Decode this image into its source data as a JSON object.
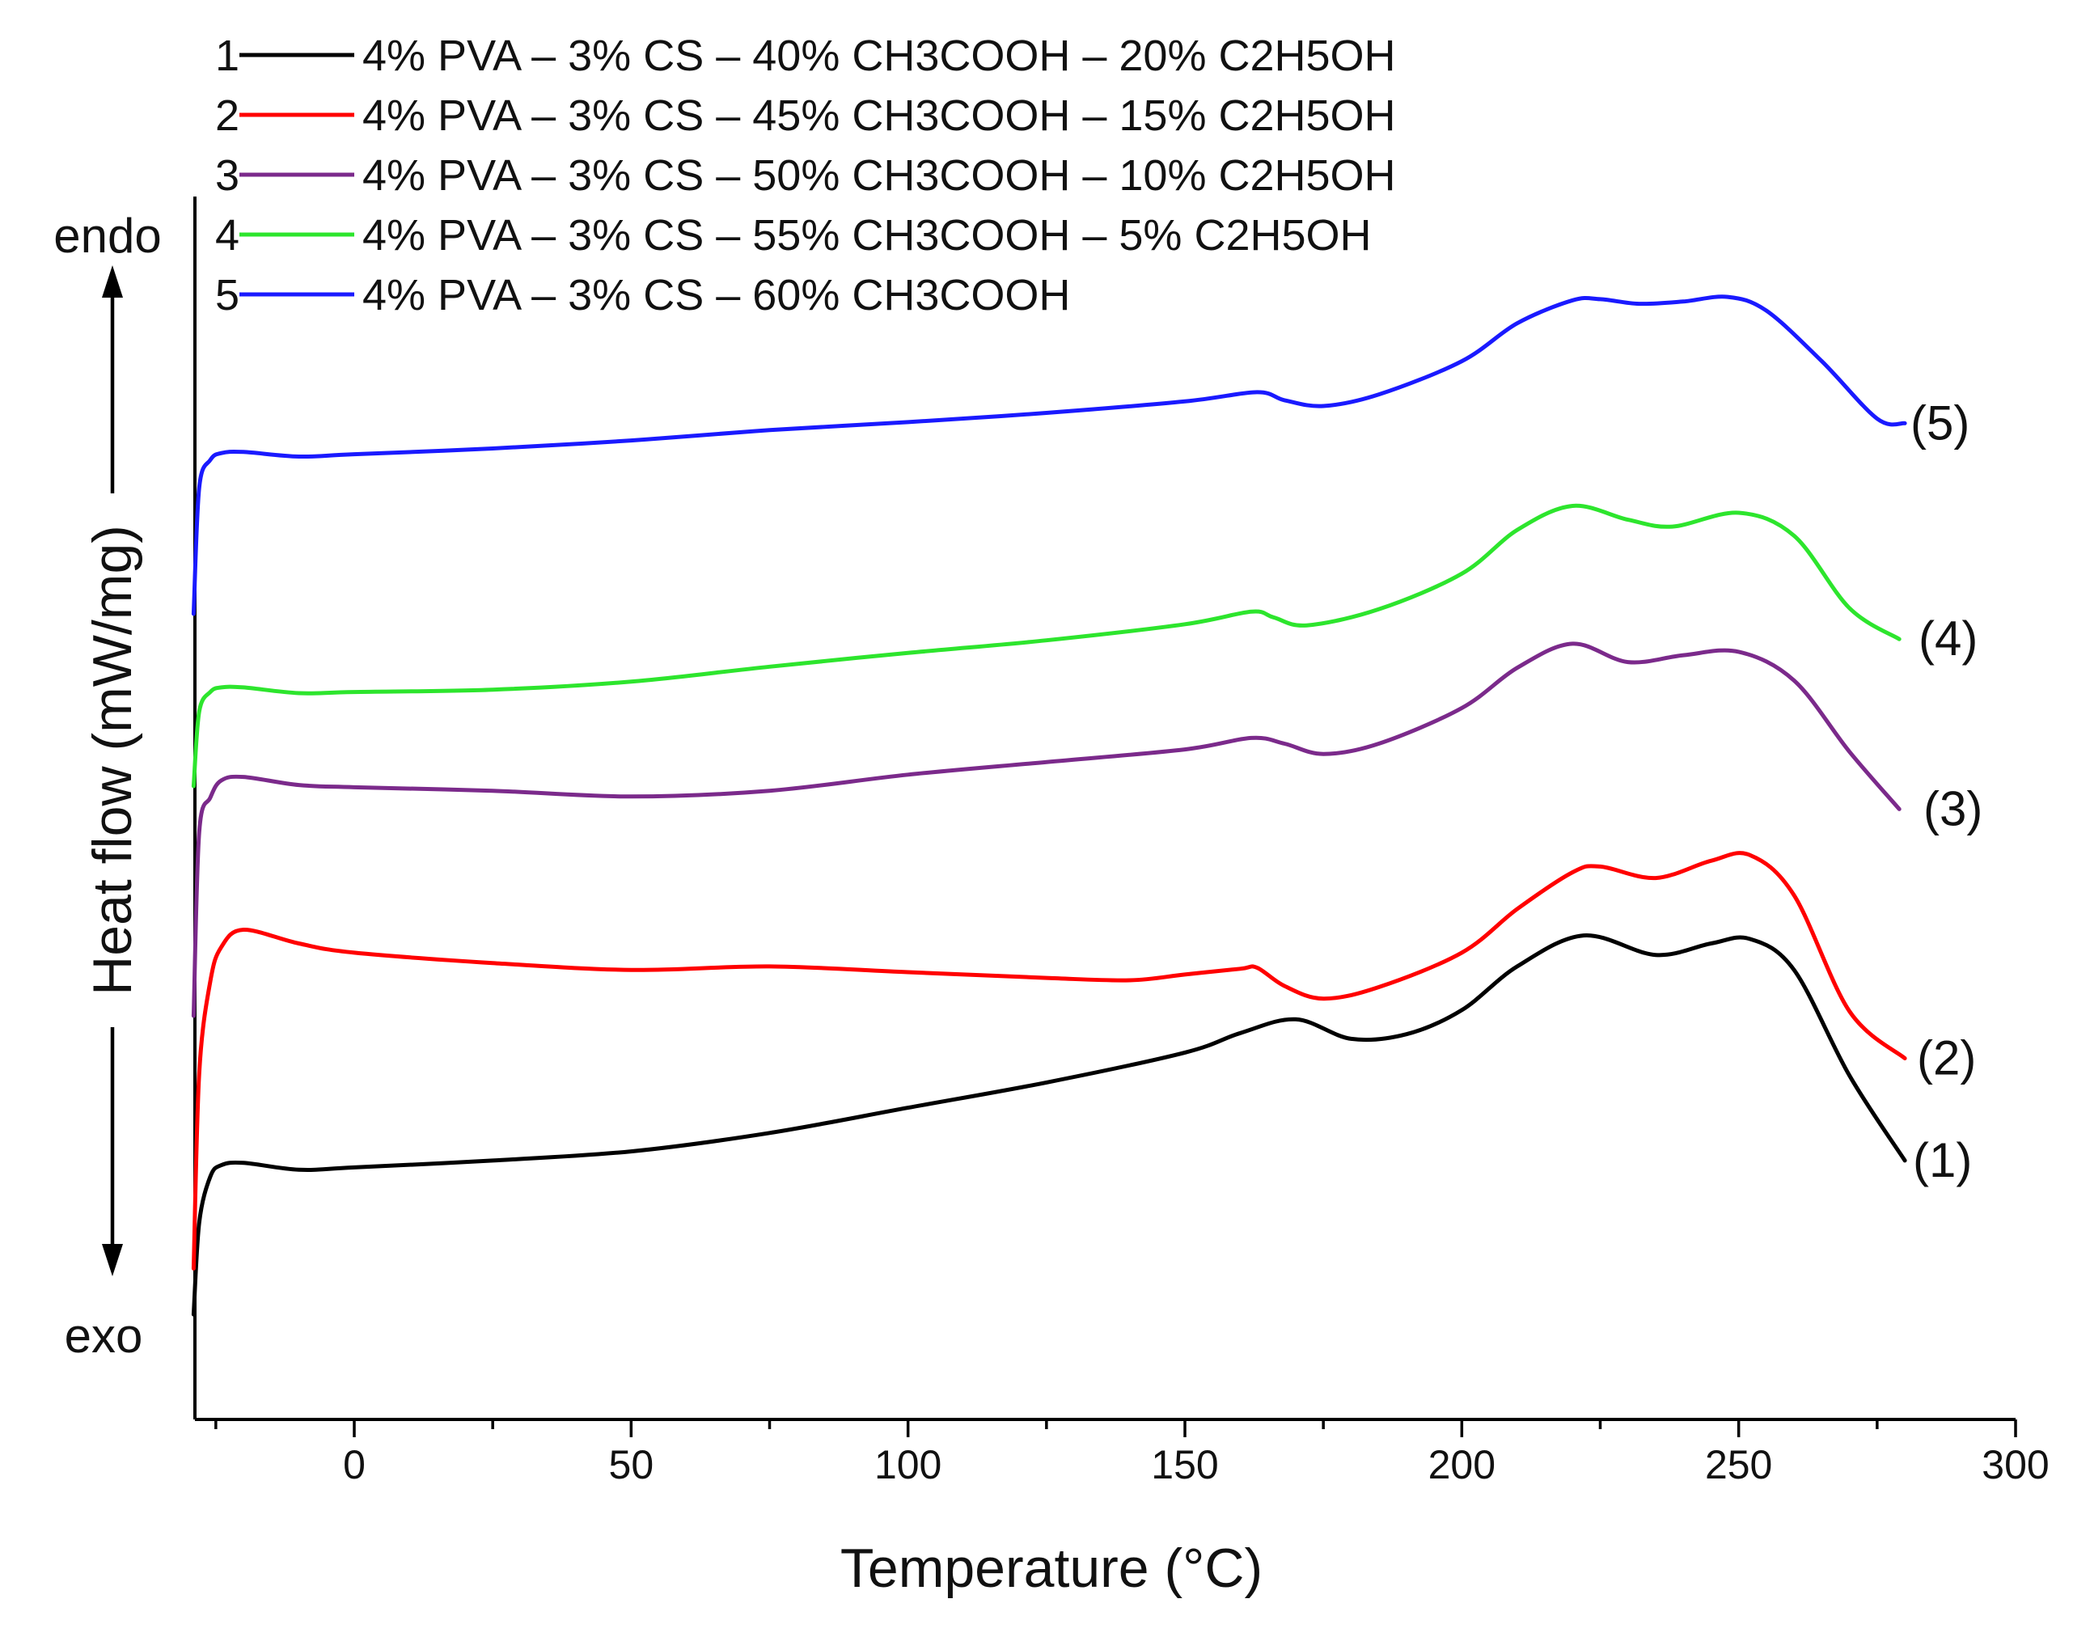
{
  "chart_data": {
    "type": "line",
    "xlabel": "Temperature (°C)",
    "ylabel": "Heat flow (mW/mg)",
    "xlim": [
      -30,
      300
    ],
    "ylim": [
      0,
      100
    ],
    "x_ticks": [
      0,
      50,
      100,
      150,
      200,
      250,
      300
    ],
    "y_ticks_shown": false,
    "grid": false,
    "direction_labels": {
      "up": "endo",
      "down": "exo"
    },
    "legend_position": "top-left",
    "series": [
      {
        "id": "1",
        "name": "4% PVA – 3% CS – 40% CH3COOH – 20% C2H5OH",
        "label": "(1)",
        "color": "#000000",
        "x": [
          -29,
          -28,
          -26,
          -24,
          -20,
          -10,
          0,
          25,
          50,
          75,
          100,
          125,
          150,
          160,
          170,
          180,
          190,
          200,
          210,
          222,
          235,
          245,
          252,
          260,
          270,
          280
        ],
        "y": [
          4,
          12,
          16,
          17,
          17.2,
          16.6,
          16.8,
          17.4,
          18.2,
          19.8,
          22,
          24.2,
          26.8,
          28.5,
          29.7,
          28,
          28.4,
          30.5,
          34.3,
          37,
          35.3,
          36.3,
          36.7,
          34,
          24.8,
          17.4
        ]
      },
      {
        "id": "2",
        "name": "4% PVA – 3% CS – 45% CH3COOH – 15% C2H5OH",
        "label": "(2)",
        "color": "#ff0000",
        "x": [
          -29,
          -28,
          -26,
          -24,
          -20,
          -10,
          0,
          25,
          50,
          75,
          100,
          125,
          140,
          150,
          160,
          163,
          168,
          175,
          185,
          200,
          210,
          220,
          225,
          235,
          245,
          252,
          260,
          270,
          280
        ],
        "y": [
          8,
          25,
          33,
          36,
          37.5,
          36.3,
          35.5,
          34.6,
          34,
          34.3,
          33.8,
          33.3,
          33.1,
          33.6,
          34.1,
          34.2,
          32.6,
          31.5,
          32.5,
          35.5,
          39.3,
          42.5,
          43,
          42,
          43.5,
          44,
          40.5,
          30.4,
          26.3
        ]
      },
      {
        "id": "3",
        "name": "4% PVA – 3% CS – 50% CH3COOH – 10% C2H5OH",
        "label": "(3)",
        "color": "#7b2a8b",
        "x": [
          -29,
          -28,
          -26,
          -24,
          -20,
          -10,
          0,
          25,
          50,
          75,
          100,
          125,
          150,
          162,
          168,
          175,
          185,
          200,
          210,
          220,
          230,
          240,
          250,
          260,
          270,
          279
        ],
        "y": [
          30,
          46,
          49,
          50.5,
          50.8,
          50.1,
          49.9,
          49.6,
          49.1,
          49.6,
          51,
          52.1,
          53.2,
          54.2,
          53.7,
          52.8,
          53.7,
          56.8,
          60.3,
          62.4,
          60.8,
          61.4,
          61.7,
          59.2,
          53,
          48
        ]
      },
      {
        "id": "4",
        "name": "4% PVA – 3% CS – 55% CH3COOH – 5% C2H5OH",
        "label": "(4)",
        "color": "#2de52d",
        "x": [
          -29,
          -28,
          -26,
          -24,
          -20,
          -10,
          0,
          25,
          50,
          75,
          100,
          125,
          150,
          162,
          166,
          172,
          185,
          200,
          210,
          220,
          230,
          238,
          250,
          260,
          270,
          279
        ],
        "y": [
          50,
          56.5,
          58.2,
          58.6,
          58.6,
          58.1,
          58.2,
          58.4,
          59.1,
          60.4,
          61.6,
          62.7,
          64.1,
          65.2,
          64.7,
          64,
          65.4,
          68.5,
          72.3,
          74.4,
          73.2,
          72.6,
          73.8,
          71.8,
          65.5,
          62.8
        ]
      },
      {
        "id": "5",
        "name": "4% PVA – 3% CS – 60% CH3COOH",
        "label": "(5)",
        "color": "#1a1aff",
        "x": [
          -29,
          -28,
          -26,
          -24,
          -20,
          -10,
          0,
          25,
          50,
          75,
          100,
          125,
          150,
          163,
          168,
          175,
          185,
          200,
          210,
          220,
          225,
          232,
          240,
          248,
          255,
          265,
          275,
          280
        ],
        "y": [
          65,
          76,
          78.4,
          79,
          79.1,
          78.7,
          78.9,
          79.4,
          80.1,
          81,
          81.7,
          82.5,
          83.5,
          84.3,
          83.6,
          83.1,
          84.1,
          87,
          90.3,
          92.3,
          92.4,
          92,
          92.2,
          92.6,
          91.4,
          87,
          82,
          81.6
        ]
      }
    ]
  }
}
